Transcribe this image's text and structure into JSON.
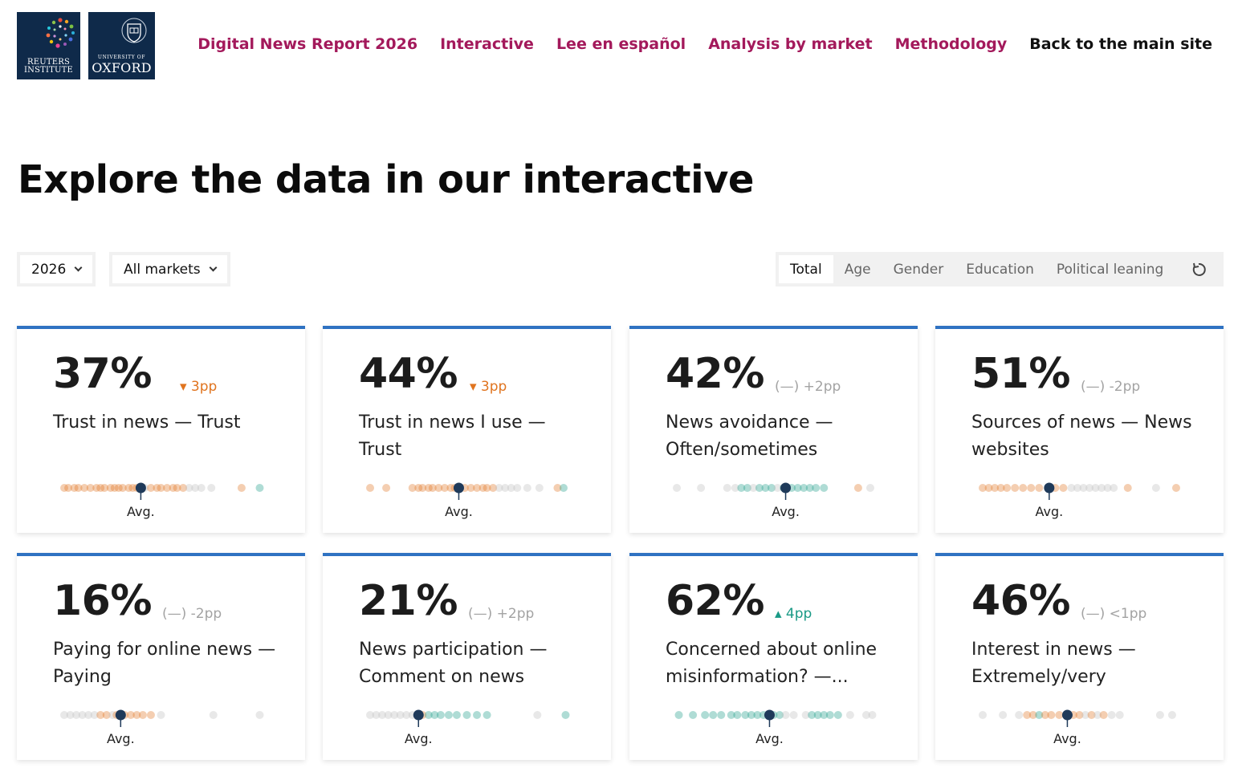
{
  "header": {
    "logo_reuters": {
      "line1": "REUTERS",
      "line2": "INSTITUTE"
    },
    "logo_oxford": {
      "line1": "UNIVERSITY OF",
      "line2": "OXFORD"
    },
    "nav": [
      {
        "label": "Digital News Report 2026"
      },
      {
        "label": "Interactive"
      },
      {
        "label": "Lee en español"
      },
      {
        "label": "Analysis by market"
      },
      {
        "label": "Methodology"
      },
      {
        "label": "Back to the main site"
      }
    ]
  },
  "page_title": "Explore the data in our interactive",
  "controls": {
    "year": "2026",
    "market": "All markets",
    "tabs": [
      {
        "label": "Total",
        "active": true
      },
      {
        "label": "Age",
        "active": false
      },
      {
        "label": "Gender",
        "active": false
      },
      {
        "label": "Education",
        "active": false
      },
      {
        "label": "Political leaning",
        "active": false
      }
    ],
    "reset_icon": "reset-icon"
  },
  "colors": {
    "accent": "#2f72c2",
    "nav": "#a3195b",
    "down": "#e0741f",
    "up": "#1a9a86",
    "flat": "#a3a3a3",
    "marker": "#1f3a5a"
  },
  "cards": [
    {
      "value": "37%",
      "change": "▾ 3pp",
      "trend": "down",
      "label": "Trust in news — Trust",
      "avg_label": "Avg.",
      "avg": 0.4,
      "dots": [
        0.02,
        0.04,
        0.07,
        0.09,
        0.12,
        0.15,
        0.18,
        0.2,
        0.22,
        0.25,
        0.27,
        0.29,
        0.31,
        0.34,
        0.36,
        0.38,
        0.42,
        0.45,
        0.48,
        0.5,
        0.53,
        0.56,
        0.58,
        0.61,
        0.64,
        0.67,
        0.7,
        0.75,
        0.9,
        0.99
      ],
      "tones": [
        "o",
        "o",
        "o",
        "o",
        "o",
        "o",
        "o",
        "o",
        "o",
        "o",
        "o",
        "o",
        "o",
        "o",
        "o",
        "o",
        "g",
        "o",
        "o",
        "o",
        "o",
        "o",
        "o",
        "o",
        "g",
        "g",
        "g",
        "g",
        "o",
        "t"
      ]
    },
    {
      "value": "44%",
      "change": "▾ 3pp",
      "trend": "down",
      "label": "Trust in news I use — Trust",
      "avg_label": "Avg.",
      "avg": 0.46,
      "dots": [
        0.02,
        0.1,
        0.23,
        0.26,
        0.28,
        0.31,
        0.33,
        0.36,
        0.39,
        0.42,
        0.44,
        0.49,
        0.52,
        0.55,
        0.58,
        0.6,
        0.63,
        0.66,
        0.69,
        0.72,
        0.75,
        0.8,
        0.86,
        0.95,
        0.98
      ],
      "tones": [
        "o",
        "o",
        "o",
        "o",
        "o",
        "o",
        "o",
        "o",
        "o",
        "o",
        "o",
        "o",
        "o",
        "o",
        "o",
        "o",
        "o",
        "g",
        "g",
        "g",
        "g",
        "g",
        "g",
        "o",
        "t"
      ]
    },
    {
      "value": "42%",
      "change": "(—) +2pp",
      "trend": "flat",
      "label": "News avoidance — Often/sometimes",
      "avg_label": "Avg.",
      "avg": 0.56,
      "dots": [
        0.02,
        0.14,
        0.27,
        0.31,
        0.34,
        0.37,
        0.4,
        0.43,
        0.46,
        0.49,
        0.52,
        0.55,
        0.59,
        0.62,
        0.65,
        0.68,
        0.71,
        0.75,
        0.92,
        0.98
      ],
      "tones": [
        "g",
        "g",
        "g",
        "g",
        "t",
        "t",
        "g",
        "t",
        "t",
        "t",
        "g",
        "t",
        "t",
        "t",
        "t",
        "t",
        "t",
        "t",
        "o",
        "g"
      ]
    },
    {
      "value": "51%",
      "change": "(—) -2pp",
      "trend": "flat",
      "label": "Sources of news — News websites",
      "avg_label": "Avg.",
      "avg": 0.35,
      "dots": [
        0.02,
        0.05,
        0.08,
        0.11,
        0.14,
        0.18,
        0.22,
        0.26,
        0.3,
        0.38,
        0.42,
        0.46,
        0.49,
        0.52,
        0.55,
        0.58,
        0.61,
        0.64,
        0.67,
        0.74,
        0.88,
        0.98
      ],
      "tones": [
        "o",
        "o",
        "o",
        "o",
        "o",
        "o",
        "o",
        "o",
        "o",
        "o",
        "o",
        "g",
        "g",
        "g",
        "g",
        "g",
        "g",
        "g",
        "g",
        "o",
        "g",
        "o"
      ]
    },
    {
      "value": "16%",
      "change": "(—) -2pp",
      "trend": "flat",
      "label": "Paying for online news — Paying",
      "avg_label": "Avg.",
      "avg": 0.3,
      "dots": [
        0.02,
        0.05,
        0.08,
        0.11,
        0.14,
        0.17,
        0.2,
        0.23,
        0.26,
        0.28,
        0.32,
        0.35,
        0.38,
        0.41,
        0.45,
        0.5,
        0.76,
        0.99
      ],
      "tones": [
        "g",
        "g",
        "g",
        "g",
        "g",
        "g",
        "o",
        "o",
        "g",
        "o",
        "o",
        "o",
        "o",
        "o",
        "o",
        "g",
        "g",
        "g"
      ]
    },
    {
      "value": "21%",
      "change": "(—) +2pp",
      "trend": "flat",
      "label": "News participation — Comment on news",
      "avg_label": "Avg.",
      "avg": 0.26,
      "dots": [
        0.02,
        0.05,
        0.08,
        0.11,
        0.14,
        0.17,
        0.2,
        0.23,
        0.28,
        0.31,
        0.34,
        0.37,
        0.41,
        0.45,
        0.5,
        0.55,
        0.6,
        0.85,
        0.99
      ],
      "tones": [
        "g",
        "g",
        "g",
        "g",
        "g",
        "g",
        "g",
        "g",
        "o",
        "t",
        "t",
        "t",
        "t",
        "t",
        "t",
        "t",
        "t",
        "g",
        "t"
      ]
    },
    {
      "value": "62%",
      "change": "▴ 4pp",
      "trend": "up",
      "label": "Concerned about online misinformation? —...",
      "avg_label": "Avg.",
      "avg": 0.48,
      "dots": [
        0.03,
        0.1,
        0.16,
        0.2,
        0.24,
        0.29,
        0.32,
        0.36,
        0.39,
        0.42,
        0.45,
        0.5,
        0.53,
        0.56,
        0.6,
        0.66,
        0.69,
        0.72,
        0.75,
        0.78,
        0.82,
        0.88,
        0.96,
        0.99
      ],
      "tones": [
        "t",
        "t",
        "t",
        "t",
        "t",
        "t",
        "t",
        "t",
        "t",
        "t",
        "t",
        "t",
        "t",
        "g",
        "g",
        "g",
        "t",
        "t",
        "t",
        "t",
        "t",
        "g",
        "g",
        "g"
      ]
    },
    {
      "value": "46%",
      "change": "(—) <1pp",
      "trend": "flat",
      "label": "Interest in news — Extremely/very",
      "avg_label": "Avg.",
      "avg": 0.44,
      "dots": [
        0.02,
        0.12,
        0.2,
        0.24,
        0.27,
        0.3,
        0.33,
        0.36,
        0.4,
        0.44,
        0.47,
        0.5,
        0.53,
        0.56,
        0.59,
        0.62,
        0.66,
        0.7,
        0.9,
        0.96
      ],
      "tones": [
        "g",
        "g",
        "g",
        "o",
        "o",
        "t",
        "o",
        "o",
        "o",
        "o",
        "o",
        "o",
        "g",
        "o",
        "g",
        "o",
        "g",
        "g",
        "g",
        "g"
      ]
    }
  ]
}
